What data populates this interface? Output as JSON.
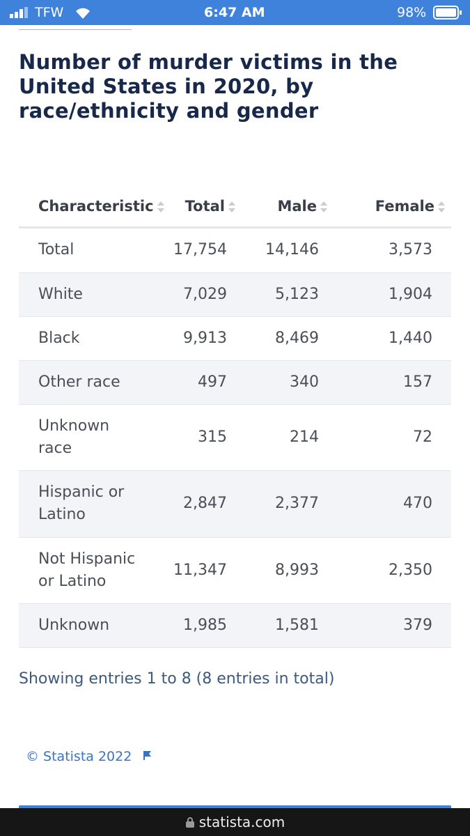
{
  "status_bar": {
    "carrier": "TFW",
    "time": "6:47 AM",
    "battery": "98%"
  },
  "title": "Number of murder victims in the United States in 2020, by race/ethnicity and gender",
  "table": {
    "columns": [
      "Characteristic",
      "Total",
      "Male",
      "Female"
    ],
    "rows": [
      [
        "Total",
        "17,754",
        "14,146",
        "3,573"
      ],
      [
        "White",
        "7,029",
        "5,123",
        "1,904"
      ],
      [
        "Black",
        "9,913",
        "8,469",
        "1,440"
      ],
      [
        "Other race",
        "497",
        "340",
        "157"
      ],
      [
        "Unknown race",
        "315",
        "214",
        "72"
      ],
      [
        "Hispanic or Latino",
        "2,847",
        "2,377",
        "470"
      ],
      [
        "Not Hispanic or Latino",
        "11,347",
        "8,993",
        "2,350"
      ],
      [
        "Unknown",
        "1,985",
        "1,581",
        "379"
      ]
    ]
  },
  "footer": {
    "entries": "Showing entries 1 to 8 (8 entries in total)",
    "copyright": "© Statista 2022"
  },
  "browser": {
    "url": "statista.com"
  }
}
